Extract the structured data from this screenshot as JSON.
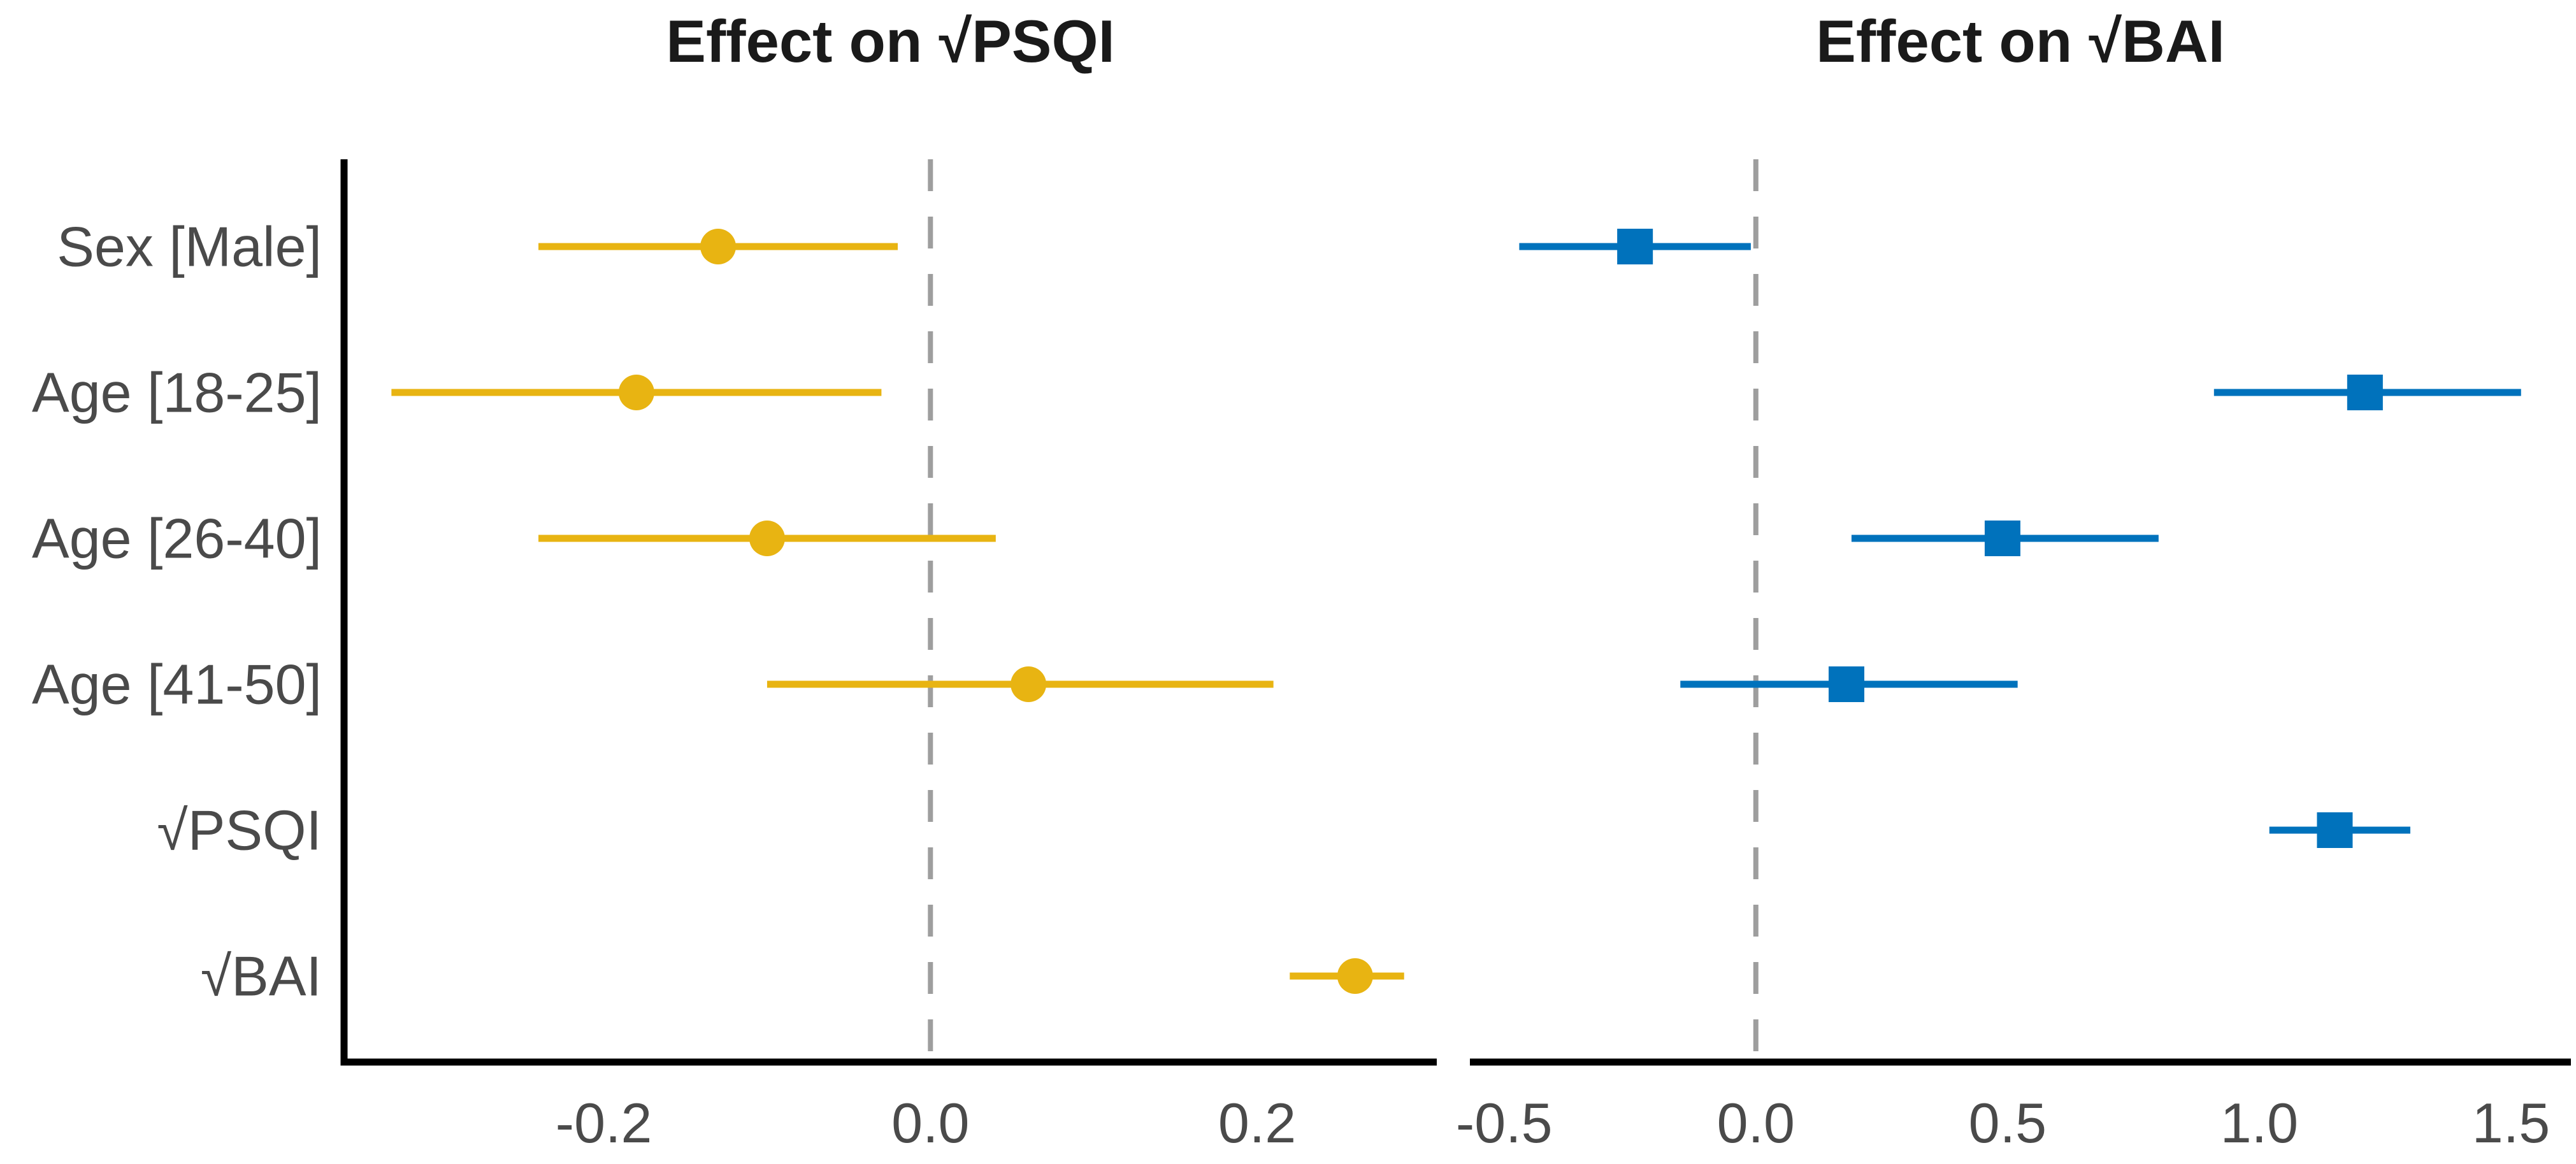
{
  "page": {
    "background": "#ffffff"
  },
  "categories": [
    "Sex [Male]",
    "Age [18-25]",
    "Age [26-40]",
    "Age [41-50]",
    "√PSQI",
    "√BAI"
  ],
  "styles": {
    "axis_color": "#000000",
    "label_color": "#4a4a4a",
    "tick_label_color": "#4a4a4a",
    "zero_line_color": "#9e9e9e",
    "title_color": "#1a1a1a",
    "psqi_color": "#E8B412",
    "bai_color": "#0072BC"
  },
  "chart_data": [
    {
      "type": "scatter",
      "subtype": "forest-plot",
      "title": "Effect on √PSQI",
      "marker": "circle",
      "color": "#E8B412",
      "categories": [
        "Sex [Male]",
        "Age [18-25]",
        "Age [26-40]",
        "Age [41-50]",
        "√PSQI",
        "√BAI"
      ],
      "estimates": [
        -0.13,
        -0.18,
        -0.1,
        0.06,
        null,
        0.26
      ],
      "ci_low": [
        -0.24,
        -0.33,
        -0.24,
        -0.1,
        null,
        0.22
      ],
      "ci_high": [
        -0.02,
        -0.03,
        0.04,
        0.21,
        null,
        0.29
      ],
      "xticks": [
        -0.2,
        0.0,
        0.2
      ],
      "xtick_labels": [
        "-0.2",
        "0.0",
        "0.2"
      ],
      "xlim": [
        -0.359,
        0.31
      ],
      "zero_line": 0,
      "grid": false,
      "legend": "none",
      "left_spine": true
    },
    {
      "type": "scatter",
      "subtype": "forest-plot",
      "title": "Effect on √BAI",
      "marker": "square",
      "color": "#0072BC",
      "categories": [
        "Sex [Male]",
        "Age [18-25]",
        "Age [26-40]",
        "Age [41-50]",
        "√PSQI",
        "√BAI"
      ],
      "estimates": [
        -0.24,
        1.21,
        0.49,
        0.18,
        1.15,
        null
      ],
      "ci_low": [
        -0.47,
        0.91,
        0.19,
        -0.15,
        1.02,
        null
      ],
      "ci_high": [
        -0.01,
        1.52,
        0.8,
        0.52,
        1.3,
        null
      ],
      "xticks": [
        -0.5,
        0.0,
        0.5,
        1.0,
        1.5
      ],
      "xtick_labels": [
        "-0.5",
        "0.0",
        "0.5",
        "1.0",
        "1.5"
      ],
      "xlim": [
        -0.568,
        1.619
      ],
      "zero_line": 0,
      "grid": false,
      "legend": "none",
      "left_spine": false
    }
  ]
}
